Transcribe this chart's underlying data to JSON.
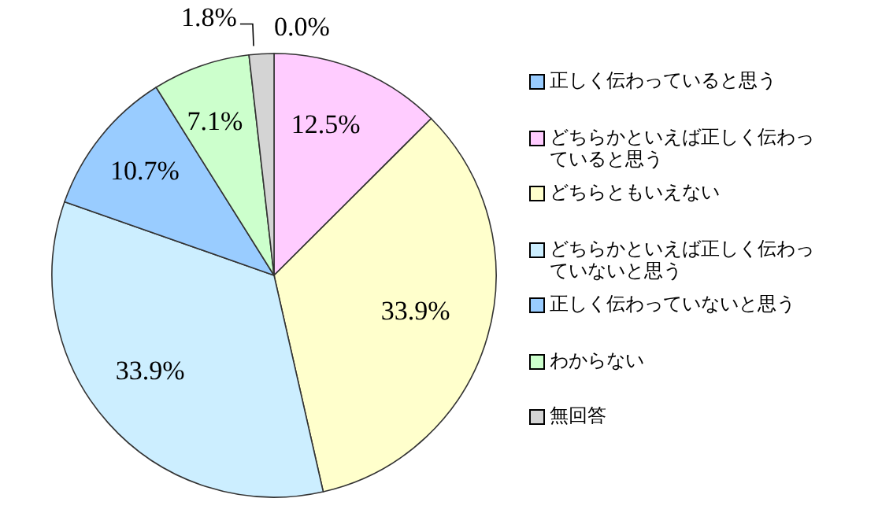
{
  "chart_data": {
    "type": "pie",
    "categories": [
      "正しく伝わっていると思う",
      "どちらかといえば正しく伝わっていると思う",
      "どちらともいえない",
      "どちらかといえば正しく伝わっていないと思う",
      "正しく伝わっていないと思う",
      "わからない",
      "無回答"
    ],
    "values": [
      0.0,
      12.5,
      33.9,
      33.9,
      10.7,
      7.1,
      1.8
    ],
    "value_labels": [
      "0.0%",
      "12.5%",
      "33.9%",
      "33.9%",
      "10.7%",
      "7.1%",
      "1.8%"
    ],
    "colors": [
      "#99ccff",
      "#ffccff",
      "#ffffcc",
      "#cceeff",
      "#99ccff",
      "#ccffcc",
      "#d4d4d4"
    ],
    "legend": "right"
  }
}
